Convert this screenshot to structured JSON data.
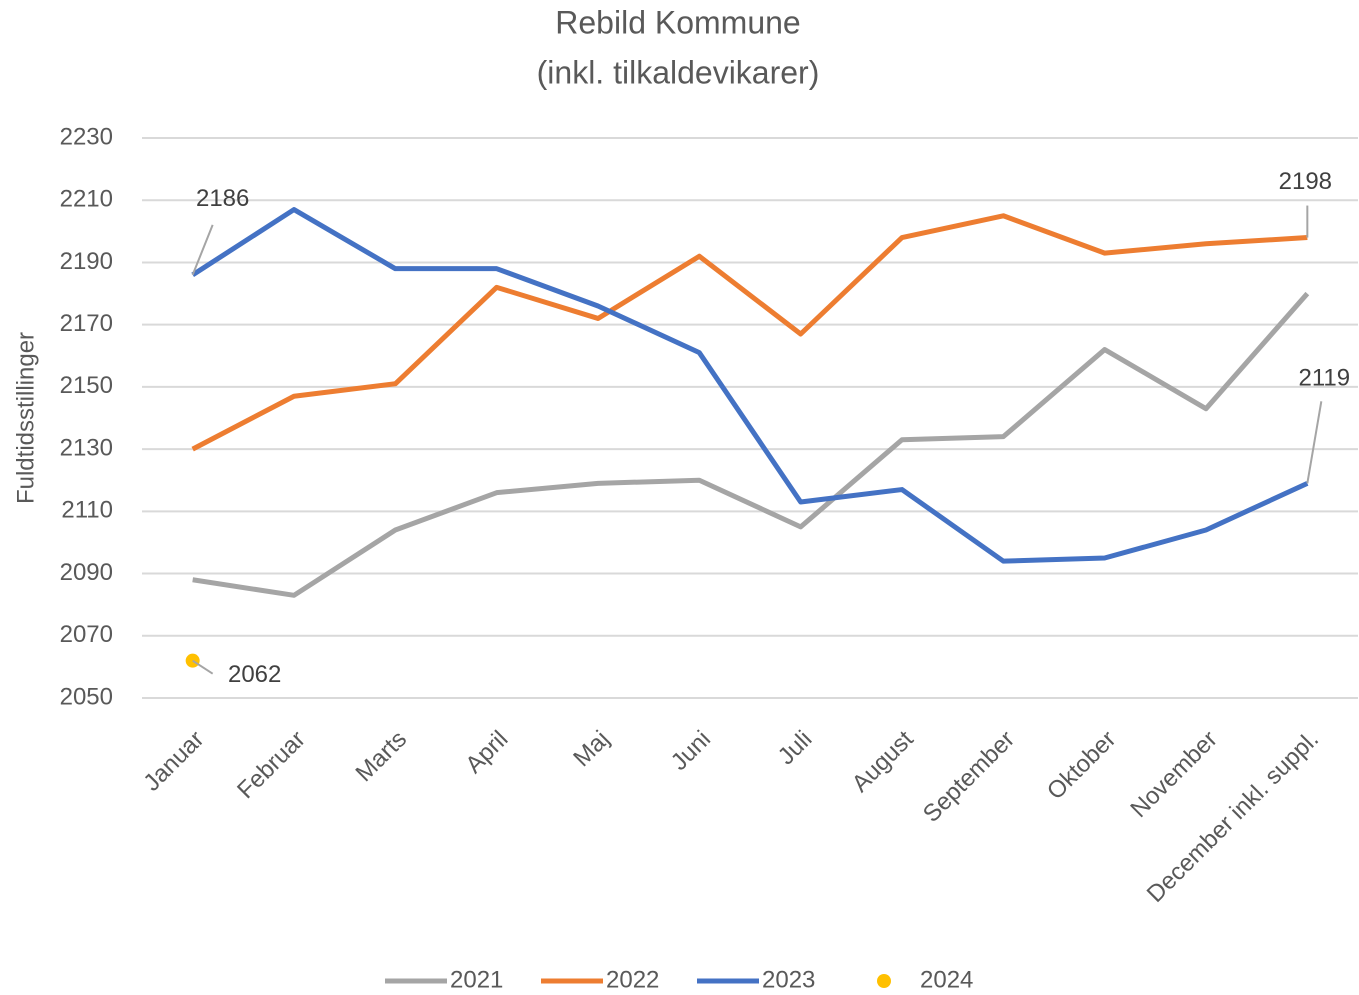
{
  "chart_data": {
    "type": "line",
    "title": [
      "Rebild Kommune",
      "(inkl. tilkaldevikarer)"
    ],
    "y_label": "Fuldtidsstillinger",
    "categories": [
      "Januar",
      "Februar",
      "Marts",
      "April",
      "Maj",
      "Juni",
      "Juli",
      "August",
      "September",
      "Oktober",
      "November",
      "December inkl. suppl."
    ],
    "series": [
      {
        "name": "2021",
        "color": "#a5a5a5",
        "values": [
          2088,
          2083,
          2104,
          2116,
          2119,
          2120,
          2105,
          2133,
          2134,
          2162,
          2143,
          2180
        ]
      },
      {
        "name": "2022",
        "color": "#ed7d31",
        "values": [
          2130,
          2147,
          2151,
          2182,
          2172,
          2192,
          2167,
          2198,
          2205,
          2193,
          2196,
          2198
        ]
      },
      {
        "name": "2023",
        "color": "#4472c4",
        "values": [
          2186,
          2207,
          2188,
          2188,
          2176,
          2161,
          2113,
          2117,
          2094,
          2095,
          2104,
          2119
        ]
      },
      {
        "name": "2024",
        "color": "#ffc000",
        "values": [
          2062,
          null,
          null,
          null,
          null,
          null,
          null,
          null,
          null,
          null,
          null,
          null
        ]
      }
    ],
    "ylim": [
      2050,
      2230
    ],
    "yticks": [
      2050,
      2070,
      2090,
      2110,
      2130,
      2150,
      2170,
      2190,
      2210,
      2230
    ],
    "grid": true,
    "legend": "bottom"
  }
}
